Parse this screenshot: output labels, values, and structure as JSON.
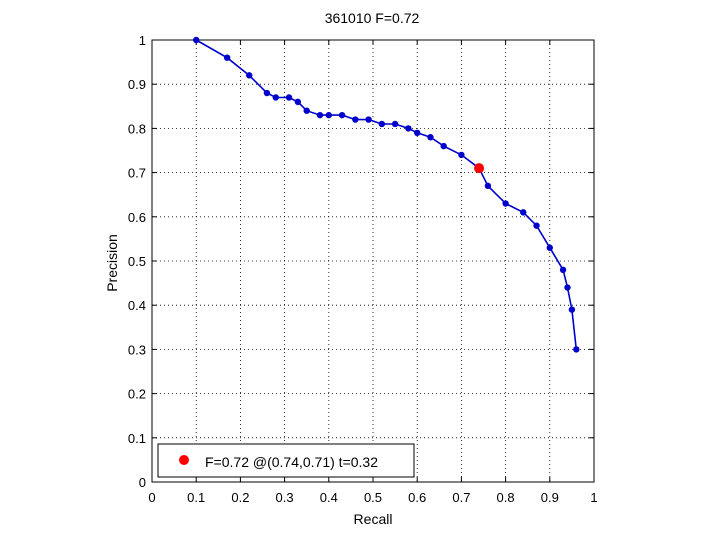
{
  "chart_data": {
    "type": "line",
    "title": "361010 F=0.72",
    "xlabel": "Recall",
    "ylabel": "Precision",
    "xlim": [
      0,
      1
    ],
    "ylim": [
      0,
      1
    ],
    "xticks": [
      "0",
      "0.1",
      "0.2",
      "0.3",
      "0.4",
      "0.5",
      "0.6",
      "0.7",
      "0.8",
      "0.9",
      "1"
    ],
    "yticks": [
      "0",
      "0.1",
      "0.2",
      "0.3",
      "0.4",
      "0.5",
      "0.6",
      "0.7",
      "0.8",
      "0.9",
      "1"
    ],
    "grid": true,
    "grid_style": "dotted",
    "series": [
      {
        "color": "#0000cc",
        "marker": "dot",
        "x": [
          0.1,
          0.17,
          0.22,
          0.26,
          0.28,
          0.31,
          0.33,
          0.35,
          0.38,
          0.4,
          0.43,
          0.46,
          0.49,
          0.52,
          0.55,
          0.58,
          0.6,
          0.63,
          0.66,
          0.7,
          0.74,
          0.76,
          0.8,
          0.84,
          0.87,
          0.9,
          0.93,
          0.94,
          0.95,
          0.96
        ],
        "y": [
          1.0,
          0.96,
          0.92,
          0.88,
          0.87,
          0.87,
          0.86,
          0.84,
          0.83,
          0.83,
          0.83,
          0.82,
          0.82,
          0.81,
          0.81,
          0.8,
          0.79,
          0.78,
          0.76,
          0.74,
          0.71,
          0.67,
          0.63,
          0.61,
          0.58,
          0.53,
          0.48,
          0.44,
          0.39,
          0.3
        ]
      }
    ],
    "highlight": {
      "x": 0.74,
      "y": 0.71,
      "color": "#ff0000"
    },
    "legend": {
      "position": "bottom-left",
      "entries": [
        {
          "label": "F=0.72 @(0.74,0.71) t=0.32",
          "color": "#ff0000",
          "marker": "dot"
        }
      ]
    }
  }
}
